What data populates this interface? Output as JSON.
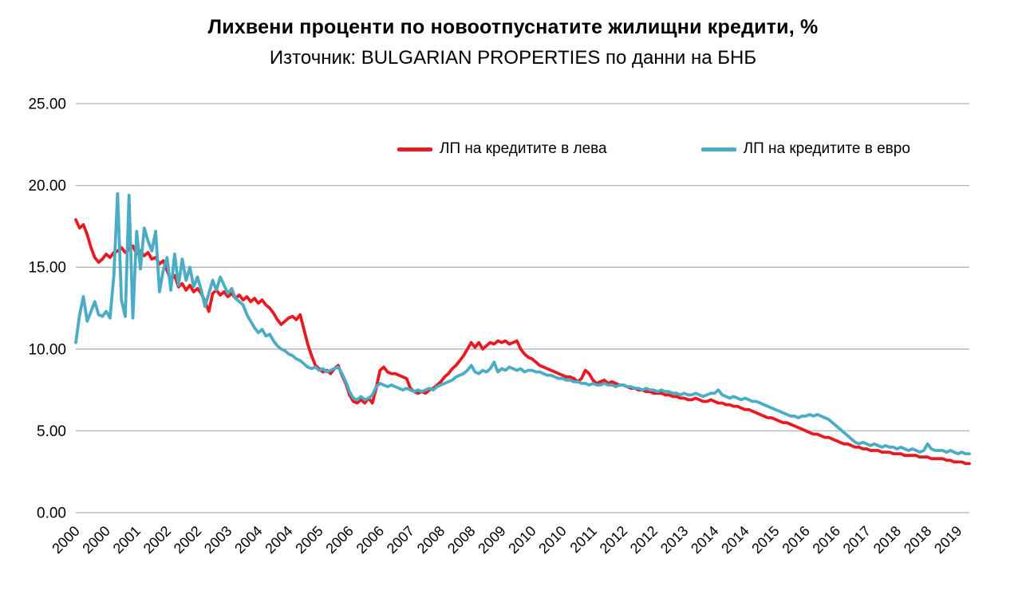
{
  "chart_data": {
    "type": "line",
    "title": "Лихвени проценти по новоотпуснатите жилищни кредити, %",
    "subtitle": "Източник: BULGARIAN PROPERTIES по данни на БНБ",
    "x_frequency": "monthly",
    "x_start": "2000-01",
    "x_label_step": 8,
    "x_tick_labels": [
      "2000",
      "2000",
      "2001",
      "2002",
      "2002",
      "2003",
      "2004",
      "2004",
      "2005",
      "2006",
      "2006",
      "2007",
      "2008",
      "2008",
      "2009",
      "2010",
      "2010",
      "2011",
      "2012",
      "2012",
      "2013",
      "2014",
      "2014",
      "2015",
      "2016",
      "2016",
      "2017",
      "2018",
      "2018",
      "2019"
    ],
    "ylim": [
      0,
      25
    ],
    "yticks": [
      0,
      5,
      10,
      15,
      20,
      25
    ],
    "ytick_format": "two-decimals",
    "grid": "horizontal",
    "legend_position": "top-center-inside",
    "colors": {
      "leva": "#e8191f",
      "euro": "#4bacc6",
      "grid": "#b3b3b3",
      "axis_text": "#000000"
    },
    "series": [
      {
        "name": "ЛП на кредитите в лева",
        "color_key": "leva",
        "values": [
          17.9,
          17.4,
          17.6,
          17.0,
          16.2,
          15.6,
          15.3,
          15.5,
          15.8,
          15.6,
          15.9,
          16.0,
          16.2,
          15.9,
          16.1,
          16.3,
          15.8,
          16.0,
          15.7,
          15.9,
          15.5,
          15.6,
          15.2,
          15.4,
          14.8,
          14.2,
          14.5,
          13.8,
          14.0,
          13.6,
          13.9,
          13.5,
          13.7,
          13.4,
          12.9,
          12.3,
          13.4,
          13.6,
          13.3,
          13.5,
          13.2,
          13.4,
          13.1,
          13.3,
          13.0,
          13.2,
          12.9,
          13.1,
          12.8,
          13.0,
          12.7,
          12.5,
          12.2,
          11.8,
          11.5,
          11.7,
          11.9,
          12.0,
          11.8,
          12.1,
          11.2,
          10.3,
          9.6,
          9.0,
          8.8,
          8.6,
          8.7,
          8.5,
          8.8,
          9.0,
          8.4,
          7.9,
          7.2,
          6.8,
          6.7,
          6.9,
          6.7,
          7.0,
          6.7,
          7.6,
          8.7,
          8.9,
          8.6,
          8.5,
          8.5,
          8.4,
          8.3,
          8.2,
          7.6,
          7.4,
          7.3,
          7.4,
          7.3,
          7.5,
          7.6,
          7.8,
          8.0,
          8.3,
          8.5,
          8.8,
          9.0,
          9.3,
          9.6,
          10.0,
          10.4,
          10.1,
          10.4,
          10.0,
          10.2,
          10.4,
          10.3,
          10.5,
          10.4,
          10.5,
          10.3,
          10.4,
          10.5,
          10.0,
          9.7,
          9.5,
          9.4,
          9.2,
          9.0,
          8.9,
          8.8,
          8.7,
          8.6,
          8.5,
          8.4,
          8.3,
          8.3,
          8.2,
          8.0,
          8.2,
          8.7,
          8.5,
          8.1,
          7.9,
          8.0,
          8.1,
          7.9,
          8.0,
          7.9,
          7.8,
          7.8,
          7.7,
          7.6,
          7.6,
          7.5,
          7.5,
          7.4,
          7.4,
          7.3,
          7.3,
          7.3,
          7.2,
          7.2,
          7.1,
          7.1,
          7.0,
          7.0,
          6.9,
          6.9,
          7.0,
          6.9,
          6.8,
          6.8,
          6.9,
          6.8,
          6.7,
          6.7,
          6.6,
          6.6,
          6.5,
          6.5,
          6.4,
          6.3,
          6.3,
          6.2,
          6.1,
          6.0,
          5.9,
          5.8,
          5.8,
          5.7,
          5.6,
          5.5,
          5.5,
          5.4,
          5.3,
          5.2,
          5.1,
          5.0,
          4.9,
          4.8,
          4.8,
          4.7,
          4.6,
          4.6,
          4.5,
          4.4,
          4.3,
          4.2,
          4.2,
          4.1,
          4.0,
          4.0,
          3.9,
          3.9,
          3.8,
          3.8,
          3.8,
          3.7,
          3.7,
          3.7,
          3.6,
          3.6,
          3.6,
          3.5,
          3.5,
          3.5,
          3.5,
          3.4,
          3.4,
          3.4,
          3.3,
          3.3,
          3.3,
          3.3,
          3.2,
          3.2,
          3.1,
          3.1,
          3.1,
          3.0,
          3.0
        ]
      },
      {
        "name": "ЛП на кредитите в евро",
        "color_key": "euro",
        "values": [
          10.4,
          12.1,
          13.2,
          11.7,
          12.3,
          12.9,
          12.1,
          12.0,
          12.3,
          11.9,
          14.5,
          19.5,
          13.0,
          12.0,
          19.4,
          11.9,
          17.2,
          14.9,
          17.4,
          16.6,
          16.0,
          17.2,
          13.5,
          14.8,
          15.6,
          13.6,
          15.8,
          13.9,
          15.5,
          14.2,
          15.0,
          13.8,
          14.4,
          13.6,
          12.6,
          13.4,
          14.2,
          13.6,
          14.4,
          13.9,
          13.4,
          13.7,
          13.1,
          12.9,
          12.7,
          12.1,
          11.7,
          11.3,
          11.0,
          11.2,
          10.8,
          10.9,
          10.5,
          10.2,
          10.0,
          9.9,
          9.7,
          9.6,
          9.4,
          9.3,
          9.1,
          8.9,
          8.8,
          8.9,
          8.7,
          8.8,
          8.6,
          8.7,
          8.8,
          8.9,
          8.5,
          8.0,
          7.4,
          7.0,
          6.9,
          7.1,
          6.9,
          7.0,
          7.2,
          7.7,
          7.9,
          7.8,
          7.7,
          7.8,
          7.7,
          7.6,
          7.5,
          7.6,
          7.5,
          7.4,
          7.5,
          7.4,
          7.5,
          7.6,
          7.5,
          7.7,
          7.8,
          7.9,
          8.0,
          8.1,
          8.3,
          8.4,
          8.5,
          8.7,
          9.0,
          8.6,
          8.5,
          8.7,
          8.6,
          8.8,
          9.2,
          8.6,
          8.8,
          8.7,
          8.9,
          8.8,
          8.7,
          8.8,
          8.6,
          8.7,
          8.7,
          8.6,
          8.6,
          8.5,
          8.4,
          8.4,
          8.3,
          8.2,
          8.2,
          8.1,
          8.1,
          8.0,
          8.0,
          7.9,
          7.9,
          7.8,
          7.9,
          7.8,
          7.8,
          7.9,
          7.8,
          7.8,
          7.7,
          7.8,
          7.8,
          7.7,
          7.7,
          7.6,
          7.6,
          7.5,
          7.6,
          7.5,
          7.5,
          7.4,
          7.5,
          7.4,
          7.4,
          7.3,
          7.3,
          7.2,
          7.3,
          7.2,
          7.2,
          7.3,
          7.2,
          7.1,
          7.2,
          7.3,
          7.3,
          7.5,
          7.2,
          7.1,
          7.0,
          7.1,
          7.0,
          6.9,
          7.0,
          6.9,
          6.8,
          6.8,
          6.7,
          6.6,
          6.5,
          6.4,
          6.3,
          6.2,
          6.1,
          6.0,
          5.9,
          5.9,
          5.8,
          5.9,
          5.9,
          6.0,
          5.9,
          6.0,
          5.9,
          5.8,
          5.7,
          5.5,
          5.3,
          5.1,
          4.9,
          4.7,
          4.5,
          4.3,
          4.2,
          4.3,
          4.2,
          4.1,
          4.2,
          4.1,
          4.0,
          4.1,
          4.0,
          4.0,
          3.9,
          4.0,
          3.9,
          3.8,
          3.9,
          3.8,
          3.7,
          3.8,
          4.2,
          3.9,
          3.8,
          3.8,
          3.8,
          3.7,
          3.8,
          3.7,
          3.6,
          3.7,
          3.6,
          3.6
        ]
      }
    ]
  }
}
